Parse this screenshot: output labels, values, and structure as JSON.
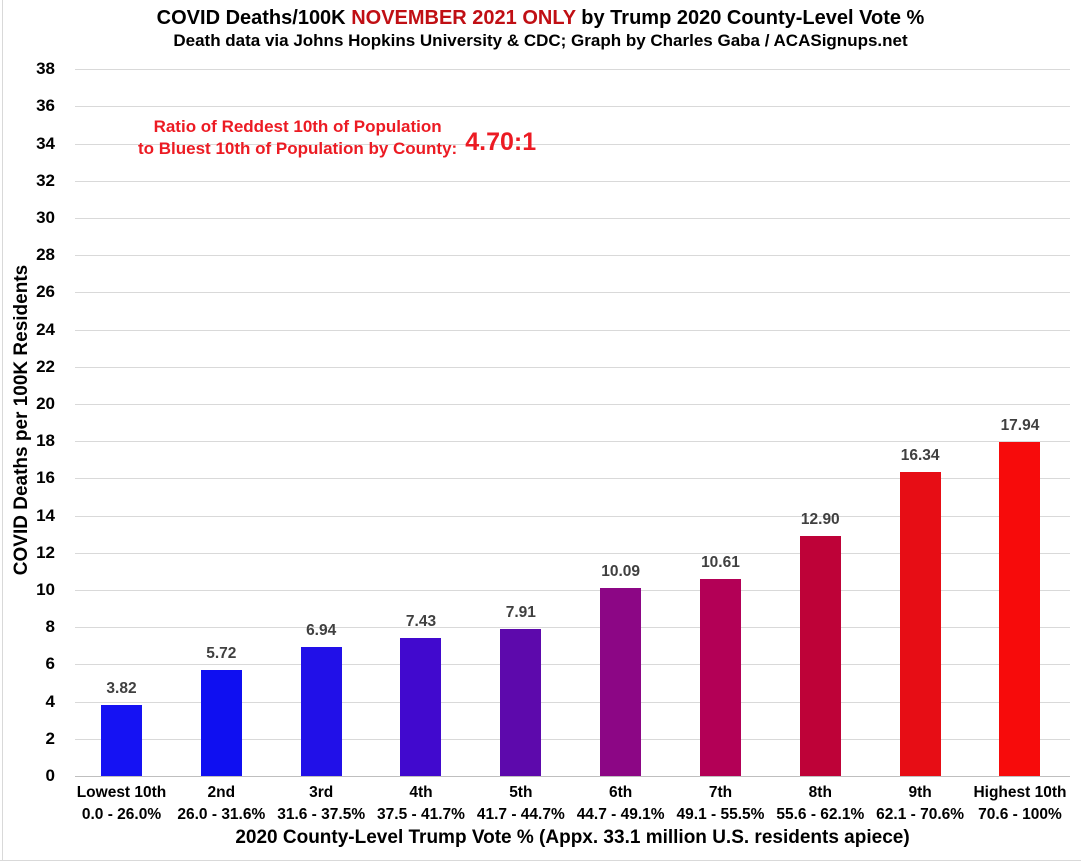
{
  "header": {
    "title_prefix": "COVID Deaths/100K ",
    "title_highlight": "NOVEMBER 2021 ONLY",
    "title_suffix": " by Trump 2020 County-Level Vote %",
    "subtitle": "Death data via Johns Hopkins University & CDC; Graph by Charles Gaba / ACASignups.net"
  },
  "annotation": {
    "line1": "Ratio of Reddest 10th of Population",
    "line2": "to Bluest 10th of Population by County:",
    "ratio": "4.70:1"
  },
  "chart_data": {
    "type": "bar",
    "title": "COVID Deaths/100K NOVEMBER 2021 ONLY by Trump 2020 County-Level Vote %",
    "subtitle": "Death data via Johns Hopkins University & CDC; Graph by Charles Gaba / ACASignups.net",
    "categories": [
      "Lowest 10th",
      "2nd",
      "3rd",
      "4th",
      "5th",
      "6th",
      "7th",
      "8th",
      "9th",
      "Highest 10th"
    ],
    "category_ranges": [
      "0.0 - 26.0%",
      "26.0 - 31.6%",
      "31.6 - 37.5%",
      "37.5 - 41.7%",
      "41.7 - 44.7%",
      "44.7 - 49.1%",
      "49.1 - 55.5%",
      "55.6 - 62.1%",
      "62.1 - 70.6%",
      "70.6 - 100%"
    ],
    "values": [
      3.82,
      5.72,
      6.94,
      7.43,
      7.91,
      10.09,
      10.61,
      12.9,
      16.34,
      17.94
    ],
    "value_labels": [
      "3.82",
      "5.72",
      "6.94",
      "7.43",
      "7.91",
      "10.09",
      "10.61",
      "12.90",
      "16.34",
      "17.94"
    ],
    "bar_colors": [
      "#1512F3",
      "#0F0FF1",
      "#2110E8",
      "#4109CE",
      "#5D09AC",
      "#8C0685",
      "#B30056",
      "#BE0238",
      "#E70D15",
      "#F70B0B"
    ],
    "xlabel": "2020 County-Level Trump Vote % (Appx. 33.1 million U.S. residents apiece)",
    "ylabel": "COVID Deaths per 100K Residents",
    "ylim": [
      0,
      38
    ],
    "y_tick_step": 2,
    "grid": true,
    "legend": false
  },
  "colors": {
    "title_highlight": "#C00F14",
    "annotation_red": "#EC1B23",
    "value_label": "#404040",
    "gridline": "#D9D9D9",
    "axis_line": "#BFBFBF",
    "background": "#FFFFFF"
  }
}
